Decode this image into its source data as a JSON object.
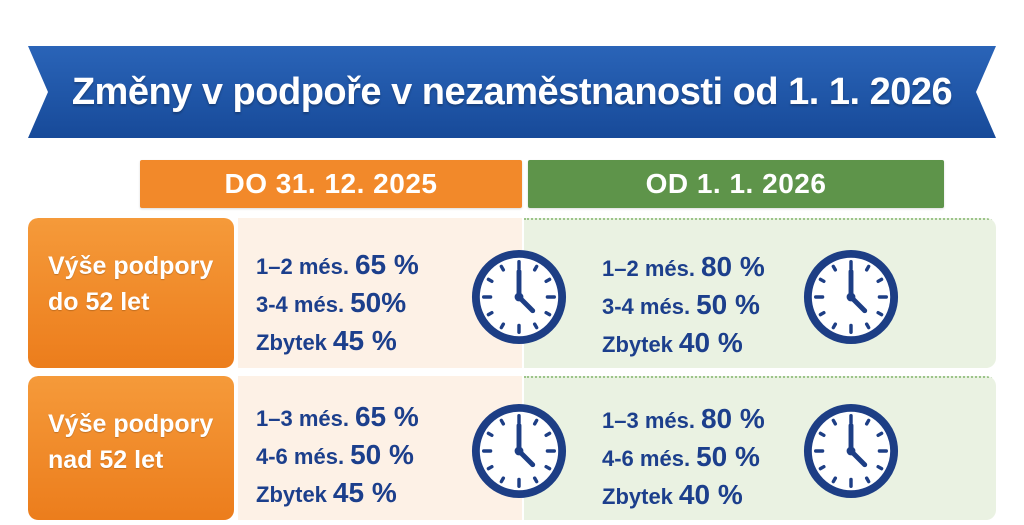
{
  "title": "Změny v podpoře v nezaměstnanosti od 1. 1. 2026",
  "columns": {
    "old": "DO 31. 12. 2025",
    "new": "OD 1. 1. 2026"
  },
  "rows": [
    {
      "label": [
        "Výše podpory",
        "do 52 let"
      ],
      "old": [
        {
          "period": "1–2 més.",
          "value": "65 %"
        },
        {
          "period": "3-4 més.",
          "value": "50%"
        },
        {
          "period": "Zbytek",
          "value": "45 %"
        }
      ],
      "new": [
        {
          "period": "1–2 més.",
          "value": "80 %"
        },
        {
          "period": "3-4 més.",
          "value": "50 %"
        },
        {
          "period": "Zbytek",
          "value": "40 %"
        }
      ]
    },
    {
      "label": [
        "Výše podpory",
        "nad 52 let"
      ],
      "old": [
        {
          "period": "1–3 més.",
          "value": "65 %"
        },
        {
          "period": "4-6 més.",
          "value": "50 %"
        },
        {
          "period": "Zbytek",
          "value": "45 %"
        }
      ],
      "new": [
        {
          "period": "1–3 més.",
          "value": "80 %"
        },
        {
          "period": "4-6 més.",
          "value": "50 %"
        },
        {
          "period": "Zbytek",
          "value": "40 %"
        }
      ]
    }
  ],
  "icons": {
    "clock": "clock-icon"
  },
  "colors": {
    "banner": "#1f55a8",
    "old_accent": "#f2892a",
    "new_accent": "#5e944a",
    "text": "#1c3f8c"
  }
}
